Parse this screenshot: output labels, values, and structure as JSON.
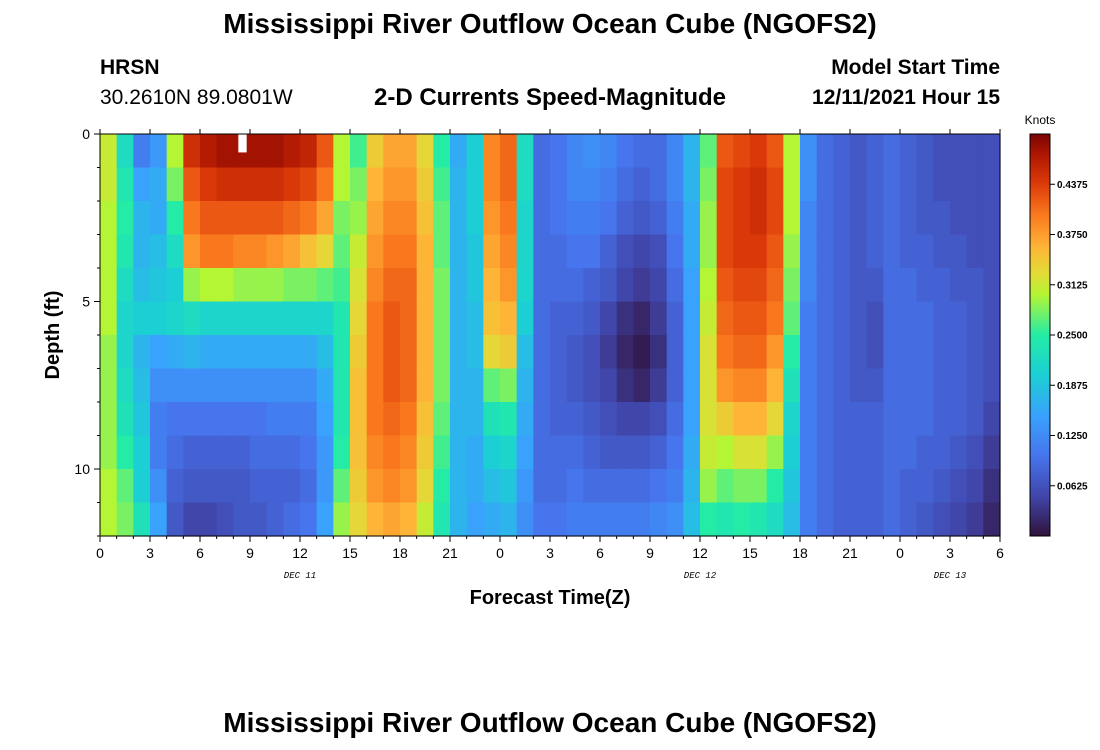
{
  "header": {
    "title": "Mississippi River Outflow Ocean Cube (NGOFS2)",
    "station_name": "HRSN",
    "station_coords": "30.2610N  89.0801W",
    "subtitle": "2-D Currents Speed-Magnitude",
    "model_label": "Model Start Time",
    "model_time": "12/11/2021 Hour 15"
  },
  "footer": {
    "title": "Mississippi River Outflow Ocean Cube (NGOFS2)"
  },
  "chart_data": {
    "type": "heatmap",
    "xlabel": "Forecast Time(Z)",
    "ylabel": "Depth (ft)",
    "colorbar_title": "Knots",
    "colorbar_ticks": [
      "0.0625",
      "0.1250",
      "0.1875",
      "0.2500",
      "0.3125",
      "0.3750",
      "0.4375"
    ],
    "colorbar_range": [
      0.0,
      0.5
    ],
    "x_range_hours": [
      0,
      54
    ],
    "y_range_ft": [
      0,
      12
    ],
    "x_ticks": [
      {
        "h": 0,
        "label": "0"
      },
      {
        "h": 3,
        "label": "3"
      },
      {
        "h": 6,
        "label": "6"
      },
      {
        "h": 9,
        "label": "9"
      },
      {
        "h": 12,
        "label": "12"
      },
      {
        "h": 15,
        "label": "15"
      },
      {
        "h": 18,
        "label": "18"
      },
      {
        "h": 21,
        "label": "21"
      },
      {
        "h": 24,
        "label": "0"
      },
      {
        "h": 27,
        "label": "3"
      },
      {
        "h": 30,
        "label": "6"
      },
      {
        "h": 33,
        "label": "9"
      },
      {
        "h": 36,
        "label": "12"
      },
      {
        "h": 39,
        "label": "15"
      },
      {
        "h": 42,
        "label": "18"
      },
      {
        "h": 45,
        "label": "21"
      },
      {
        "h": 48,
        "label": "0"
      },
      {
        "h": 51,
        "label": "3"
      },
      {
        "h": 54,
        "label": "6"
      }
    ],
    "y_ticks": [
      {
        "ft": 0,
        "label": "0"
      },
      {
        "ft": 5,
        "label": "5"
      },
      {
        "ft": 10,
        "label": "10"
      }
    ],
    "date_labels": [
      {
        "h": 12,
        "label": "DEC 11"
      },
      {
        "h": 36,
        "label": "DEC 12"
      },
      {
        "h": 51,
        "label": "DEC 13"
      }
    ],
    "columns": [
      {
        "t": 0,
        "v": [
          0.31,
          0.31,
          0.3,
          0.3,
          0.3,
          0.3,
          0.29,
          0.29,
          0.29,
          0.29,
          0.3,
          0.3
        ]
      },
      {
        "t": 1,
        "v": [
          0.22,
          0.24,
          0.25,
          0.24,
          0.22,
          0.21,
          0.21,
          0.22,
          0.23,
          0.25,
          0.27,
          0.28
        ]
      },
      {
        "t": 2,
        "v": [
          0.11,
          0.15,
          0.17,
          0.17,
          0.18,
          0.2,
          0.17,
          0.18,
          0.19,
          0.2,
          0.2,
          0.23
        ]
      },
      {
        "t": 3,
        "v": [
          0.14,
          0.16,
          0.16,
          0.18,
          0.19,
          0.2,
          0.15,
          0.13,
          0.11,
          0.11,
          0.13,
          0.15
        ]
      },
      {
        "t": 4,
        "v": [
          0.3,
          0.28,
          0.25,
          0.22,
          0.2,
          0.21,
          0.16,
          0.13,
          0.1,
          0.09,
          0.08,
          0.07
        ]
      },
      {
        "t": 5,
        "v": [
          0.45,
          0.42,
          0.4,
          0.38,
          0.29,
          0.22,
          0.17,
          0.13,
          0.1,
          0.08,
          0.07,
          0.05
        ]
      },
      {
        "t": 6,
        "v": [
          0.47,
          0.44,
          0.42,
          0.4,
          0.3,
          0.21,
          0.16,
          0.13,
          0.1,
          0.08,
          0.07,
          0.05
        ]
      },
      {
        "t": 7,
        "v": [
          0.48,
          0.45,
          0.42,
          0.4,
          0.3,
          0.21,
          0.16,
          0.13,
          0.1,
          0.08,
          0.07,
          0.06
        ]
      },
      {
        "t": 8,
        "v": [
          0.48,
          0.45,
          0.42,
          0.39,
          0.29,
          0.21,
          0.16,
          0.13,
          0.1,
          0.08,
          0.07,
          0.07
        ]
      },
      {
        "t": 9,
        "v": [
          0.48,
          0.45,
          0.42,
          0.39,
          0.29,
          0.21,
          0.16,
          0.13,
          0.1,
          0.09,
          0.08,
          0.07
        ]
      },
      {
        "t": 10,
        "v": [
          0.48,
          0.45,
          0.42,
          0.38,
          0.29,
          0.21,
          0.16,
          0.13,
          0.11,
          0.09,
          0.08,
          0.08
        ]
      },
      {
        "t": 11,
        "v": [
          0.47,
          0.44,
          0.41,
          0.37,
          0.28,
          0.21,
          0.16,
          0.13,
          0.11,
          0.09,
          0.08,
          0.09
        ]
      },
      {
        "t": 12,
        "v": [
          0.46,
          0.43,
          0.4,
          0.35,
          0.28,
          0.21,
          0.16,
          0.13,
          0.11,
          0.1,
          0.09,
          0.1
        ]
      },
      {
        "t": 13,
        "v": [
          0.42,
          0.4,
          0.37,
          0.33,
          0.27,
          0.21,
          0.18,
          0.16,
          0.15,
          0.14,
          0.14,
          0.15
        ]
      },
      {
        "t": 14,
        "v": [
          0.3,
          0.3,
          0.28,
          0.27,
          0.26,
          0.24,
          0.24,
          0.24,
          0.24,
          0.25,
          0.27,
          0.29
        ]
      },
      {
        "t": 15,
        "v": [
          0.26,
          0.28,
          0.29,
          0.31,
          0.32,
          0.33,
          0.34,
          0.35,
          0.35,
          0.35,
          0.34,
          0.33
        ]
      },
      {
        "t": 16,
        "v": [
          0.34,
          0.36,
          0.37,
          0.38,
          0.39,
          0.4,
          0.4,
          0.4,
          0.4,
          0.39,
          0.38,
          0.36
        ]
      },
      {
        "t": 17,
        "v": [
          0.37,
          0.38,
          0.39,
          0.4,
          0.41,
          0.42,
          0.42,
          0.42,
          0.41,
          0.4,
          0.39,
          0.37
        ]
      },
      {
        "t": 18,
        "v": [
          0.37,
          0.38,
          0.39,
          0.4,
          0.41,
          0.41,
          0.41,
          0.41,
          0.4,
          0.39,
          0.38,
          0.36
        ]
      },
      {
        "t": 19,
        "v": [
          0.33,
          0.34,
          0.35,
          0.36,
          0.36,
          0.36,
          0.36,
          0.36,
          0.35,
          0.34,
          0.33,
          0.31
        ]
      },
      {
        "t": 20,
        "v": [
          0.25,
          0.26,
          0.27,
          0.27,
          0.28,
          0.28,
          0.28,
          0.28,
          0.27,
          0.26,
          0.25,
          0.24
        ]
      },
      {
        "t": 21,
        "v": [
          0.16,
          0.17,
          0.17,
          0.17,
          0.17,
          0.17,
          0.17,
          0.17,
          0.17,
          0.17,
          0.17,
          0.17
        ]
      },
      {
        "t": 22,
        "v": [
          0.2,
          0.2,
          0.2,
          0.19,
          0.19,
          0.18,
          0.18,
          0.17,
          0.17,
          0.16,
          0.16,
          0.15
        ]
      },
      {
        "t": 23,
        "v": [
          0.39,
          0.39,
          0.38,
          0.37,
          0.36,
          0.35,
          0.33,
          0.27,
          0.23,
          0.2,
          0.18,
          0.16
        ]
      },
      {
        "t": 24,
        "v": [
          0.41,
          0.41,
          0.4,
          0.39,
          0.38,
          0.36,
          0.34,
          0.28,
          0.24,
          0.21,
          0.19,
          0.17
        ]
      },
      {
        "t": 25,
        "v": [
          0.22,
          0.22,
          0.21,
          0.21,
          0.21,
          0.2,
          0.18,
          0.17,
          0.16,
          0.15,
          0.14,
          0.13
        ]
      },
      {
        "t": 26,
        "v": [
          0.09,
          0.09,
          0.09,
          0.09,
          0.09,
          0.09,
          0.09,
          0.09,
          0.09,
          0.09,
          0.09,
          0.1
        ]
      },
      {
        "t": 27,
        "v": [
          0.1,
          0.1,
          0.1,
          0.09,
          0.09,
          0.08,
          0.08,
          0.08,
          0.08,
          0.09,
          0.09,
          0.1
        ]
      },
      {
        "t": 28,
        "v": [
          0.12,
          0.12,
          0.11,
          0.1,
          0.09,
          0.08,
          0.07,
          0.07,
          0.08,
          0.09,
          0.1,
          0.11
        ]
      },
      {
        "t": 29,
        "v": [
          0.13,
          0.12,
          0.11,
          0.1,
          0.08,
          0.07,
          0.06,
          0.06,
          0.07,
          0.08,
          0.09,
          0.11
        ]
      },
      {
        "t": 30,
        "v": [
          0.12,
          0.11,
          0.1,
          0.08,
          0.07,
          0.05,
          0.04,
          0.05,
          0.06,
          0.07,
          0.09,
          0.11
        ]
      },
      {
        "t": 31,
        "v": [
          0.1,
          0.09,
          0.08,
          0.06,
          0.05,
          0.03,
          0.02,
          0.03,
          0.05,
          0.07,
          0.09,
          0.11
        ]
      },
      {
        "t": 32,
        "v": [
          0.09,
          0.08,
          0.07,
          0.05,
          0.04,
          0.02,
          0.01,
          0.02,
          0.05,
          0.07,
          0.09,
          0.11
        ]
      },
      {
        "t": 33,
        "v": [
          0.09,
          0.09,
          0.08,
          0.06,
          0.05,
          0.04,
          0.03,
          0.04,
          0.06,
          0.08,
          0.1,
          0.12
        ]
      },
      {
        "t": 34,
        "v": [
          0.12,
          0.12,
          0.11,
          0.1,
          0.09,
          0.08,
          0.08,
          0.08,
          0.09,
          0.1,
          0.11,
          0.13
        ]
      },
      {
        "t": 35,
        "v": [
          0.17,
          0.17,
          0.16,
          0.16,
          0.15,
          0.15,
          0.15,
          0.15,
          0.15,
          0.16,
          0.17,
          0.18
        ]
      },
      {
        "t": 36,
        "v": [
          0.27,
          0.28,
          0.29,
          0.29,
          0.3,
          0.31,
          0.32,
          0.32,
          0.32,
          0.31,
          0.29,
          0.25
        ]
      },
      {
        "t": 37,
        "v": [
          0.42,
          0.43,
          0.43,
          0.43,
          0.42,
          0.41,
          0.4,
          0.38,
          0.34,
          0.3,
          0.27,
          0.24
        ]
      },
      {
        "t": 38,
        "v": [
          0.43,
          0.44,
          0.44,
          0.44,
          0.43,
          0.42,
          0.41,
          0.39,
          0.36,
          0.32,
          0.28,
          0.25
        ]
      },
      {
        "t": 39,
        "v": [
          0.44,
          0.45,
          0.45,
          0.44,
          0.43,
          0.42,
          0.41,
          0.39,
          0.36,
          0.32,
          0.28,
          0.24
        ]
      },
      {
        "t": 40,
        "v": [
          0.42,
          0.43,
          0.43,
          0.42,
          0.41,
          0.4,
          0.38,
          0.36,
          0.33,
          0.29,
          0.25,
          0.22
        ]
      },
      {
        "t": 41,
        "v": [
          0.3,
          0.3,
          0.3,
          0.29,
          0.28,
          0.27,
          0.25,
          0.23,
          0.21,
          0.2,
          0.19,
          0.18
        ]
      },
      {
        "t": 42,
        "v": [
          0.13,
          0.13,
          0.12,
          0.12,
          0.12,
          0.11,
          0.11,
          0.11,
          0.11,
          0.11,
          0.11,
          0.11
        ]
      },
      {
        "t": 43,
        "v": [
          0.09,
          0.09,
          0.09,
          0.09,
          0.09,
          0.09,
          0.09,
          0.09,
          0.09,
          0.09,
          0.09,
          0.09
        ]
      },
      {
        "t": 44,
        "v": [
          0.08,
          0.08,
          0.08,
          0.08,
          0.08,
          0.08,
          0.08,
          0.08,
          0.08,
          0.08,
          0.08,
          0.08
        ]
      },
      {
        "t": 45,
        "v": [
          0.07,
          0.07,
          0.07,
          0.07,
          0.07,
          0.07,
          0.07,
          0.07,
          0.08,
          0.08,
          0.08,
          0.08
        ]
      },
      {
        "t": 46,
        "v": [
          0.08,
          0.08,
          0.08,
          0.08,
          0.07,
          0.06,
          0.06,
          0.07,
          0.08,
          0.08,
          0.08,
          0.08
        ]
      },
      {
        "t": 47,
        "v": [
          0.09,
          0.09,
          0.09,
          0.09,
          0.09,
          0.09,
          0.09,
          0.09,
          0.09,
          0.09,
          0.09,
          0.09
        ]
      },
      {
        "t": 48,
        "v": [
          0.08,
          0.08,
          0.08,
          0.08,
          0.09,
          0.09,
          0.09,
          0.09,
          0.09,
          0.09,
          0.08,
          0.08
        ]
      },
      {
        "t": 49,
        "v": [
          0.07,
          0.07,
          0.07,
          0.08,
          0.08,
          0.09,
          0.09,
          0.09,
          0.09,
          0.08,
          0.08,
          0.07
        ]
      },
      {
        "t": 50,
        "v": [
          0.06,
          0.06,
          0.07,
          0.07,
          0.08,
          0.08,
          0.08,
          0.08,
          0.08,
          0.08,
          0.07,
          0.06
        ]
      },
      {
        "t": 51,
        "v": [
          0.06,
          0.06,
          0.06,
          0.07,
          0.07,
          0.08,
          0.08,
          0.08,
          0.08,
          0.07,
          0.06,
          0.05
        ]
      },
      {
        "t": 52,
        "v": [
          0.06,
          0.06,
          0.06,
          0.06,
          0.07,
          0.07,
          0.07,
          0.07,
          0.07,
          0.06,
          0.05,
          0.04
        ]
      },
      {
        "t": 53,
        "v": [
          0.06,
          0.06,
          0.06,
          0.06,
          0.06,
          0.06,
          0.06,
          0.06,
          0.05,
          0.04,
          0.03,
          0.02
        ]
      }
    ]
  }
}
